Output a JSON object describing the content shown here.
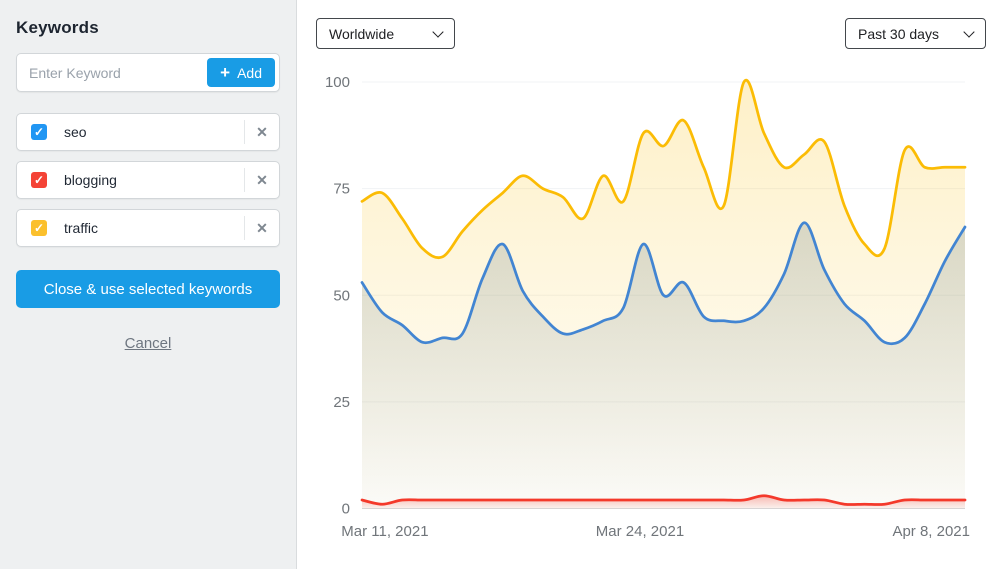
{
  "sidebar": {
    "title": "Keywords",
    "input": {
      "placeholder": "Enter Keyword",
      "add_label": "Add",
      "plus_glyph": "+"
    },
    "keywords": [
      {
        "label": "seo",
        "checked": true,
        "checkbox_color": "#2196f3",
        "remove_glyph": "✕"
      },
      {
        "label": "blogging",
        "checked": true,
        "checkbox_color": "#f44336",
        "remove_glyph": "✕"
      },
      {
        "label": "traffic",
        "checked": true,
        "checkbox_color": "#fbc02d",
        "remove_glyph": "✕"
      }
    ],
    "close_button_label": "Close & use selected keywords",
    "cancel_label": "Cancel",
    "accent_color": "#199ce5",
    "check_glyph": "✓"
  },
  "toolbar": {
    "region_select": "Worldwide",
    "range_select": "Past 30 days"
  },
  "chart_data": {
    "type": "area",
    "title": "",
    "xlabel": "",
    "ylabel": "",
    "ylim": [
      0,
      100
    ],
    "y_ticks": [
      0,
      25,
      50,
      75,
      100
    ],
    "grid": "horizontal",
    "legend_position": "none",
    "n_points": 31,
    "x_tick_labels": [
      {
        "label": "Mar 11, 2021",
        "pos": 0.038
      },
      {
        "label": "Mar 24, 2021",
        "pos": 0.461
      },
      {
        "label": "Apr 8, 2021",
        "pos": 0.944
      }
    ],
    "series": [
      {
        "name": "traffic",
        "color": "#fbbc05",
        "values": [
          72,
          74,
          68,
          61,
          59,
          65,
          70,
          74,
          78,
          75,
          73,
          68,
          78,
          72,
          88,
          85,
          91,
          80,
          71,
          100,
          88,
          80,
          83,
          86,
          71,
          62,
          61,
          84,
          80,
          80,
          80
        ]
      },
      {
        "name": "seo",
        "color": "#4285d2",
        "values": [
          53,
          46,
          43,
          39,
          40,
          41,
          54,
          62,
          51,
          45,
          41,
          42,
          44,
          47,
          62,
          50,
          53,
          45,
          44,
          44,
          47,
          55,
          67,
          56,
          48,
          44,
          39,
          40,
          48,
          58,
          66
        ]
      },
      {
        "name": "blogging",
        "color": "#f4392b",
        "values": [
          2,
          1,
          2,
          2,
          2,
          2,
          2,
          2,
          2,
          2,
          2,
          2,
          2,
          2,
          2,
          2,
          2,
          2,
          2,
          2,
          3,
          2,
          2,
          2,
          1,
          1,
          1,
          2,
          2,
          2,
          2
        ]
      }
    ],
    "axis_text_color": "#70757a"
  }
}
